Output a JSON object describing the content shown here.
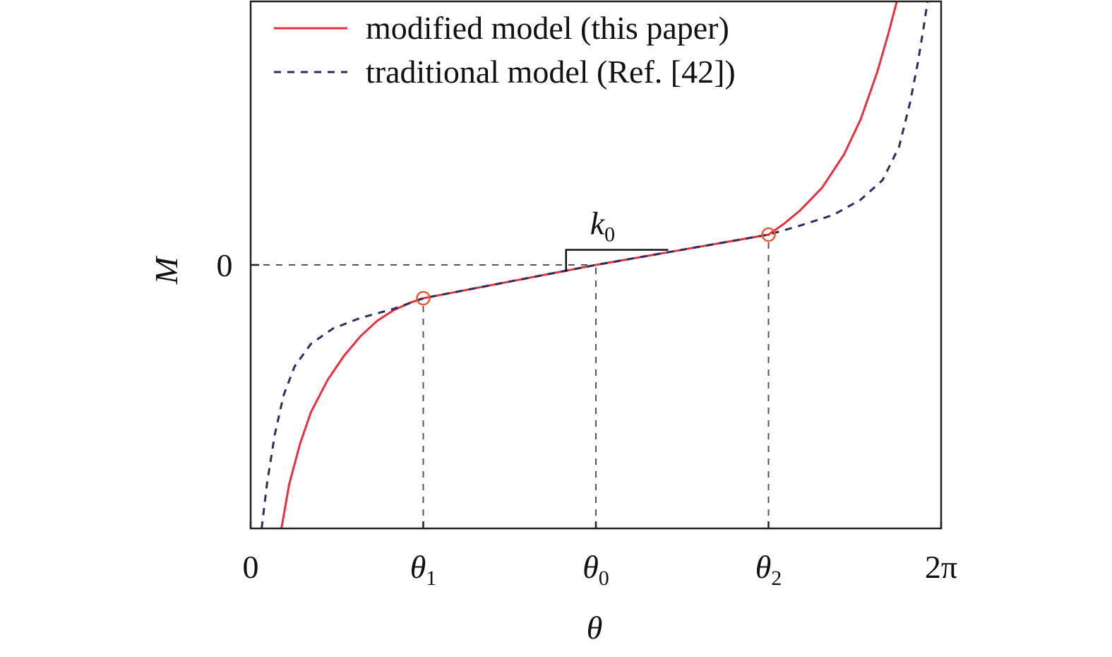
{
  "chart_data": {
    "type": "line",
    "title": "",
    "xlabel": "θ",
    "ylabel": "M",
    "x_ticks": [
      {
        "x": 0,
        "label": "0",
        "sub": ""
      },
      {
        "x": 1.5708,
        "label": "θ",
        "sub": "1"
      },
      {
        "x": 3.1416,
        "label": "θ",
        "sub": "0"
      },
      {
        "x": 4.7124,
        "label": "θ",
        "sub": "2"
      },
      {
        "x": 6.2832,
        "label": "2π",
        "sub": ""
      }
    ],
    "y_ticks": [
      {
        "y": 0,
        "label": "0"
      }
    ],
    "xlim": [
      0,
      6.2832
    ],
    "ylim": [
      -1.74,
      1.74
    ],
    "grid": false,
    "legend_position": "top",
    "series": [
      {
        "name": "modified model (this paper)",
        "color": "#e8303f",
        "dash": "solid",
        "x": [
          0.28,
          0.35,
          0.45,
          0.55,
          0.7,
          0.85,
          1.0,
          1.15,
          1.3,
          1.45,
          1.5708,
          3.1416,
          4.7124,
          4.85,
          5.0,
          5.2,
          5.4,
          5.55,
          5.7,
          5.8,
          5.88,
          5.93
        ],
        "y": [
          -1.74,
          -1.45,
          -1.18,
          -0.97,
          -0.76,
          -0.6,
          -0.47,
          -0.37,
          -0.3,
          -0.25,
          -0.22,
          0.0,
          0.2,
          0.27,
          0.36,
          0.51,
          0.73,
          0.96,
          1.27,
          1.52,
          1.74,
          1.76
        ]
      },
      {
        "name": "traditional model (Ref. [42])",
        "color": "#2a2d5e",
        "dash": "dashed",
        "x": [
          0.1,
          0.15,
          0.22,
          0.3,
          0.4,
          0.55,
          0.75,
          1.0,
          1.3,
          1.5708,
          3.1416,
          4.7124,
          5.0,
          5.3,
          5.55,
          5.75,
          5.9,
          6.0,
          6.07,
          6.12,
          6.16,
          6.19
        ],
        "y": [
          -1.74,
          -1.44,
          -1.12,
          -0.86,
          -0.67,
          -0.52,
          -0.42,
          -0.35,
          -0.29,
          -0.22,
          0.0,
          0.2,
          0.26,
          0.33,
          0.43,
          0.56,
          0.78,
          1.07,
          1.33,
          1.55,
          1.74,
          1.76
        ]
      }
    ],
    "reference_lines": {
      "horizontal": [
        {
          "y": 0,
          "from_x": 0,
          "to_x": 3.1416
        }
      ],
      "vertical": [
        {
          "x": 1.5708,
          "from_y": -1.74,
          "to_y": -0.22
        },
        {
          "x": 3.1416,
          "from_y": -1.74,
          "to_y": 0.0
        },
        {
          "x": 4.7124,
          "from_y": -1.74,
          "to_y": 0.2
        }
      ]
    },
    "markers": [
      {
        "x": 1.5708,
        "y": -0.22,
        "color": "#e85a30"
      },
      {
        "x": 4.7124,
        "y": 0.2,
        "color": "#e85a30"
      }
    ],
    "slope_annotation": {
      "label": "k",
      "sub": "0",
      "corner_x": 2.87,
      "corner_y": 0.1,
      "x_end": 3.8
    }
  }
}
